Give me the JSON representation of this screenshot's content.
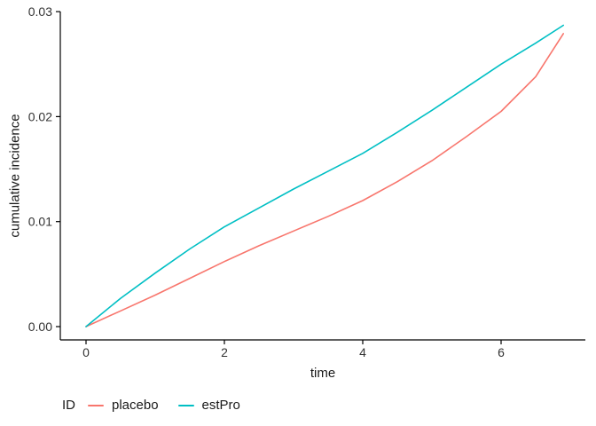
{
  "figure": {
    "background": "#ffffff",
    "axis_color": "#000000",
    "tick_label_color": "#333333"
  },
  "chart_data": {
    "type": "line",
    "title": "",
    "xlabel": "time",
    "ylabel": "cumulative incidence",
    "xlim": [
      0,
      7.35
    ],
    "ylim": [
      0,
      0.03
    ],
    "xticks": [
      0,
      2,
      4,
      6
    ],
    "xtick_labels": [
      "0",
      "2",
      "4",
      "6"
    ],
    "yticks": [
      0,
      0.01,
      0.02,
      0.03
    ],
    "ytick_labels": [
      "0.00",
      "0.01",
      "0.02",
      "0.03"
    ],
    "grid": false,
    "legend_title": "ID",
    "legend_position": "bottom-left",
    "series": [
      {
        "name": "placebo",
        "color": "#F8766D",
        "x": [
          0,
          0.5,
          1,
          1.5,
          2,
          2.5,
          3,
          3.5,
          4,
          4.5,
          5,
          5.5,
          6,
          6.5,
          6.9
        ],
        "y": [
          0,
          0.0015,
          0.003,
          0.0046,
          0.0062,
          0.0077,
          0.0091,
          0.0105,
          0.012,
          0.0138,
          0.0158,
          0.0181,
          0.0205,
          0.0238,
          0.0279
        ]
      },
      {
        "name": "estPro",
        "color": "#00BFC4",
        "x": [
          0,
          0.5,
          1,
          1.5,
          2,
          2.5,
          3,
          3.5,
          4,
          4.5,
          5,
          5.5,
          6,
          6.5,
          6.9
        ],
        "y": [
          0,
          0.0027,
          0.0051,
          0.0074,
          0.0095,
          0.0113,
          0.0131,
          0.0148,
          0.0165,
          0.0185,
          0.0206,
          0.0228,
          0.025,
          0.027,
          0.0287
        ]
      }
    ]
  }
}
